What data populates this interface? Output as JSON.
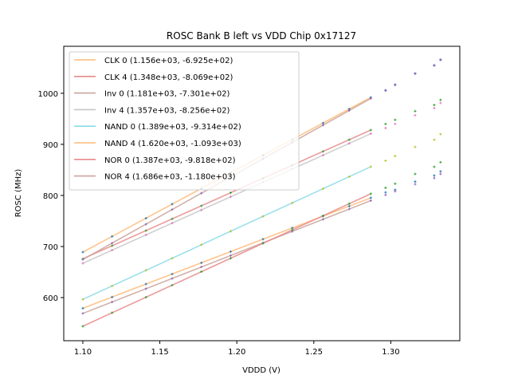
{
  "chart_data": {
    "type": "line",
    "title": "ROSC Bank B left vs VDD Chip 0x17127",
    "xlabel": "VDDD (V)",
    "ylabel": "ROSC (MHz)",
    "xlim": [
      1.0876,
      1.3448
    ],
    "ylim": [
      515.6,
      1092
    ],
    "xticks": [
      1.1,
      1.15,
      1.2,
      1.25,
      1.3
    ],
    "xtick_labels": [
      "1.10",
      "1.15",
      "1.20",
      "1.25",
      "1.30"
    ],
    "yticks": [
      600,
      700,
      800,
      900,
      1000
    ],
    "ytick_labels": [
      "600",
      "700",
      "800",
      "900",
      "1000"
    ],
    "grid": false,
    "legend_position": "top-left",
    "fit_x_range": [
      1.1,
      1.287
    ],
    "series": [
      {
        "name": "CLK 0 (1.156e+03, -6.925e+02)",
        "slope": 1156,
        "intercept": -692.5,
        "color": "#ffbb78"
      },
      {
        "name": "CLK 4 (1.348e+03, -8.069e+02)",
        "slope": 1348,
        "intercept": -806.9,
        "color": "#e88a8a"
      },
      {
        "name": "Inv 0 (1.181e+03, -7.301e+02)",
        "slope": 1181,
        "intercept": -730.1,
        "color": "#c9a59c"
      },
      {
        "name": "Inv 4 (1.357e+03, -8.256e+02)",
        "slope": 1357,
        "intercept": -825.6,
        "color": "#c7c7c7"
      },
      {
        "name": "NAND 0 (1.389e+03, -9.314e+02)",
        "slope": 1389,
        "intercept": -931.4,
        "color": "#8adce6"
      },
      {
        "name": "NAND 4 (1.620e+03, -1.093e+03)",
        "slope": 1620,
        "intercept": -1093,
        "color": "#ffbb78"
      },
      {
        "name": "NOR 0 (1.387e+03, -9.818e+02)",
        "slope": 1387,
        "intercept": -981.8,
        "color": "#e88a8a"
      },
      {
        "name": "NOR 4 (1.686e+03, -1.180e+03)",
        "slope": 1686,
        "intercept": -1180,
        "color": "#c9a59c"
      }
    ],
    "scatter_x": [
      1.1,
      1.119,
      1.141,
      1.158,
      1.177,
      1.196,
      1.217,
      1.236,
      1.256,
      1.273,
      1.287
    ],
    "scatter_groups": [
      {
        "name": "CLK 0 pts",
        "color": "#1f77b4",
        "fit": 0
      },
      {
        "name": "CLK 4 pts",
        "color": "#2ca02c",
        "fit": 1
      },
      {
        "name": "Inv 0 pts",
        "color": "#9467bd",
        "fit": 2
      },
      {
        "name": "Inv 4 pts",
        "color": "#e377c2",
        "fit": 3
      },
      {
        "name": "NAND 0 pts",
        "color": "#bcbd22",
        "fit": 4
      },
      {
        "name": "NAND 4 pts",
        "color": "#1f77b4",
        "fit": 5
      },
      {
        "name": "NOR 0 pts",
        "color": "#2ca02c",
        "fit": 6
      },
      {
        "name": "NOR 4 pts",
        "color": "#9467bd",
        "fit": 7
      }
    ],
    "extra_points": {
      "x": [
        1.2966,
        1.3028,
        1.3158,
        1.3282,
        1.3323
      ],
      "groups": [
        {
          "color": "#1f77b4",
          "y": [
            1006,
            1017,
            1039,
            1055,
            1066
          ]
        },
        {
          "color": "#9467bd",
          "y": [
            1005,
            1016,
            1038,
            1054,
            1065
          ]
        },
        {
          "color": "#2ca02c",
          "y": [
            940,
            948,
            965,
            977,
            987
          ]
        },
        {
          "color": "#e377c2",
          "y": [
            932,
            940,
            957,
            971,
            981
          ]
        },
        {
          "color": "#bcbd22",
          "y": [
            868,
            877,
            895,
            909,
            920
          ]
        },
        {
          "color": "#2ca02c",
          "y": [
            815,
            823,
            842,
            856,
            865
          ]
        },
        {
          "color": "#1f77b4",
          "y": [
            806,
            811,
            827,
            839,
            847
          ]
        },
        {
          "color": "#9467bd",
          "y": [
            801,
            808,
            822,
            834,
            842
          ]
        }
      ]
    }
  }
}
